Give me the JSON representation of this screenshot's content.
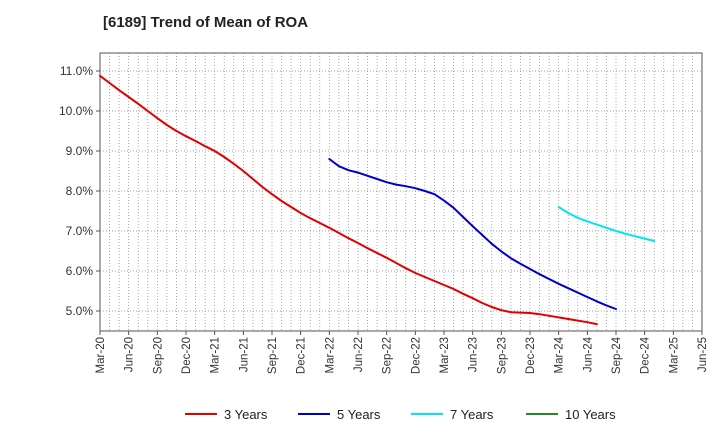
{
  "chart_data": {
    "type": "line",
    "title": "[6189]  Trend of Mean of ROA",
    "xlabel": "",
    "ylabel": "",
    "ylim": [
      4.5,
      11.45
    ],
    "y_ticks": [
      5.0,
      6.0,
      7.0,
      8.0,
      9.0,
      10.0,
      11.0
    ],
    "y_tick_labels": [
      "5.0%",
      "6.0%",
      "7.0%",
      "8.0%",
      "9.0%",
      "10.0%",
      "11.0%"
    ],
    "x_tick_labels": [
      "Mar-20",
      "Jun-20",
      "Sep-20",
      "Dec-20",
      "Mar-21",
      "Jun-21",
      "Sep-21",
      "Dec-21",
      "Mar-22",
      "Jun-22",
      "Sep-22",
      "Dec-22",
      "Mar-23",
      "Jun-23",
      "Sep-23",
      "Dec-23",
      "Mar-24",
      "Jun-24",
      "Sep-24",
      "Dec-24",
      "Mar-25",
      "Jun-25"
    ],
    "grid": true,
    "legend_position": "bottom",
    "series": [
      {
        "name": "3 Years",
        "color": "#e00000",
        "start_index": 0,
        "values": [
          10.88,
          10.7,
          10.52,
          10.35,
          10.18,
          10.0,
          9.82,
          9.65,
          9.5,
          9.37,
          9.25,
          9.12,
          9.0,
          8.85,
          8.68,
          8.5,
          8.3,
          8.1,
          7.92,
          7.75,
          7.6,
          7.45,
          7.32,
          7.2,
          7.08,
          6.95,
          6.82,
          6.7,
          6.57,
          6.45,
          6.33,
          6.2,
          6.07,
          5.95,
          5.85,
          5.75,
          5.65,
          5.55,
          5.43,
          5.32,
          5.2,
          5.1,
          5.02,
          4.97,
          4.96,
          4.95,
          4.92,
          4.88,
          4.84,
          4.8,
          4.76,
          4.72,
          4.67
        ]
      },
      {
        "name": "5 Years",
        "color": "#0000cc",
        "start_index": 24,
        "values": [
          8.8,
          8.62,
          8.52,
          8.46,
          8.38,
          8.3,
          8.22,
          8.16,
          8.12,
          8.07,
          8.0,
          7.92,
          7.76,
          7.58,
          7.35,
          7.12,
          6.9,
          6.68,
          6.49,
          6.32,
          6.18,
          6.05,
          5.92,
          5.8,
          5.68,
          5.57,
          5.46,
          5.35,
          5.24,
          5.14,
          5.05
        ]
      },
      {
        "name": "7 Years",
        "color": "#00e5ee",
        "start_index": 48,
        "values": [
          7.6,
          7.45,
          7.33,
          7.24,
          7.16,
          7.08,
          7.0,
          6.93,
          6.87,
          6.81,
          6.75
        ]
      },
      {
        "name": "10 Years",
        "color": "#228b22",
        "start_index": 0,
        "values": []
      }
    ]
  }
}
